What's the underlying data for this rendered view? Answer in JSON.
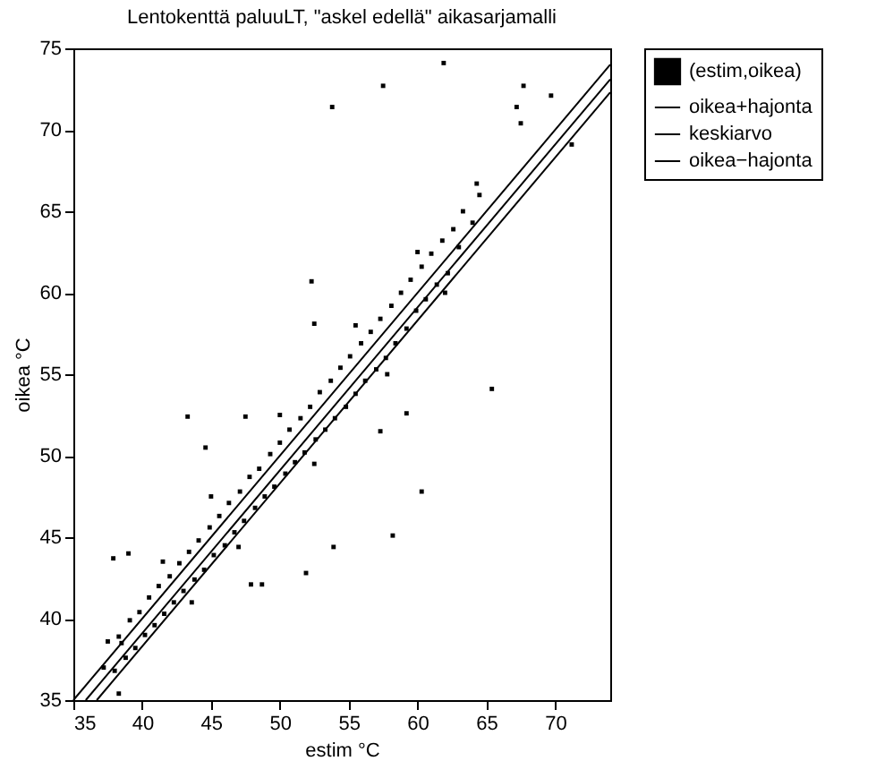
{
  "chart_data": {
    "type": "scatter",
    "title": "Lentokenttä paluuLT, \"askel edellä\" aikasarjamalli",
    "xlabel": "estim °C",
    "ylabel": "oikea °C",
    "xlim": [
      35,
      74
    ],
    "ylim": [
      35,
      75
    ],
    "xticks": [
      35,
      40,
      45,
      50,
      55,
      60,
      65,
      70
    ],
    "yticks": [
      35,
      40,
      45,
      50,
      55,
      60,
      65,
      70,
      75
    ],
    "grid": false,
    "legend": "right",
    "series": [
      {
        "name": "(estim,oikea)",
        "color": "#000000",
        "marker": "square",
        "x": [
          37.2,
          37.5,
          38.0,
          38.3,
          38.8,
          39.1,
          39.5,
          39.8,
          40.2,
          40.5,
          40.9,
          41.2,
          41.6,
          42.0,
          42.3,
          42.7,
          43.0,
          43.4,
          43.8,
          44.1,
          44.5,
          44.9,
          45.2,
          45.6,
          46.0,
          46.3,
          46.7,
          47.1,
          47.4,
          47.8,
          48.2,
          48.5,
          48.9,
          49.3,
          49.6,
          50.0,
          50.4,
          50.7,
          51.1,
          51.5,
          51.8,
          52.2,
          52.6,
          52.9,
          53.3,
          53.7,
          54.0,
          54.4,
          54.8,
          55.1,
          55.5,
          55.9,
          56.2,
          56.6,
          57.0,
          57.3,
          57.7,
          58.1,
          58.4,
          58.8,
          59.2,
          59.5,
          59.9,
          60.3,
          60.6,
          61.0,
          61.4,
          61.8,
          62.2,
          62.6,
          63.0,
          63.3,
          64.0,
          64.5,
          41.5,
          43.6,
          45.0,
          47.0,
          50.0,
          52.5,
          55.5,
          57.8,
          60.0,
          62.0,
          53.8,
          57.5,
          61.9,
          67.7,
          67.2,
          67.5,
          69.7,
          71.2,
          64.3,
          52.3,
          52.5,
          65.4,
          59.2,
          57.3,
          60.3,
          58.2,
          53.9,
          51.9,
          47.9,
          48.7,
          43.3,
          47.5,
          44.6,
          37.9,
          39.0,
          38.5,
          38.3
        ],
        "values": [
          37.0,
          38.6,
          36.8,
          38.9,
          37.6,
          39.9,
          38.2,
          40.4,
          39.0,
          41.3,
          39.6,
          42.0,
          40.3,
          42.6,
          41.0,
          43.4,
          41.7,
          44.1,
          42.4,
          44.8,
          43.0,
          45.6,
          43.9,
          46.3,
          44.5,
          47.1,
          45.3,
          47.8,
          46.0,
          48.7,
          46.8,
          49.2,
          47.5,
          50.1,
          48.1,
          50.8,
          48.9,
          51.6,
          49.6,
          52.3,
          50.2,
          53.0,
          51.0,
          53.9,
          51.6,
          54.6,
          52.3,
          55.4,
          53.0,
          56.1,
          53.8,
          56.9,
          54.6,
          57.6,
          55.3,
          58.4,
          56.0,
          59.2,
          56.9,
          60.0,
          57.8,
          60.8,
          58.9,
          61.6,
          59.6,
          62.4,
          60.5,
          63.2,
          61.2,
          63.9,
          62.8,
          65.0,
          64.3,
          66.0,
          43.5,
          41.0,
          47.5,
          44.4,
          52.5,
          49.5,
          58.0,
          55.0,
          62.5,
          60.0,
          71.4,
          72.7,
          74.1,
          72.7,
          71.4,
          70.4,
          72.1,
          69.1,
          66.7,
          60.7,
          58.1,
          54.1,
          52.6,
          51.5,
          47.8,
          45.1,
          44.4,
          42.8,
          42.1,
          42.1,
          52.4,
          52.4,
          50.5,
          43.7,
          44.0,
          38.5,
          35.4
        ]
      },
      {
        "name": "oikea+hajonta",
        "color": "#000000",
        "type": "line",
        "x": [
          35,
          74
        ],
        "values": [
          35,
          74
        ]
      },
      {
        "name": "keskiarvo",
        "color": "#000000",
        "type": "line",
        "x": [
          35.9,
          74
        ],
        "values": [
          35,
          73.1
        ]
      },
      {
        "name": "oikea−hajonta",
        "color": "#000000",
        "type": "line",
        "x": [
          36.7,
          74
        ],
        "values": [
          35,
          72.3
        ]
      }
    ]
  }
}
